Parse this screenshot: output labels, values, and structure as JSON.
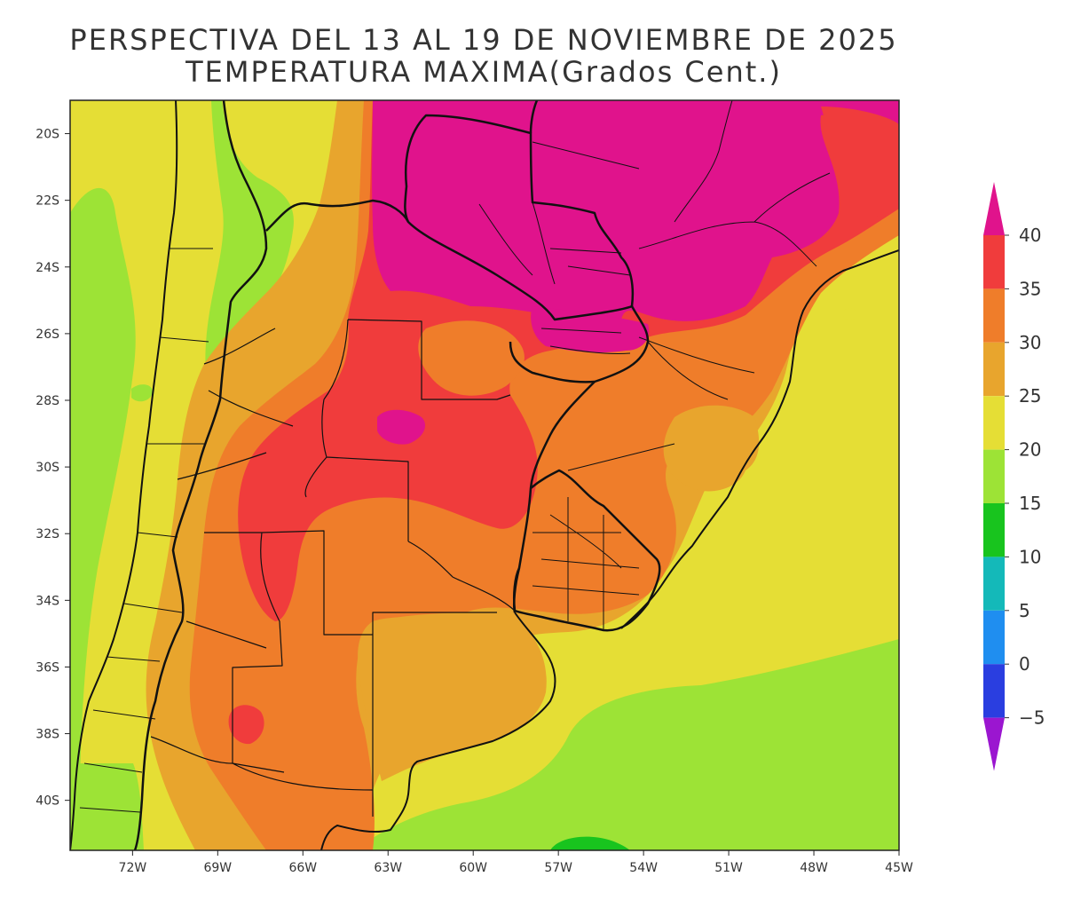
{
  "title": {
    "line1": "PERSPECTIVA DEL 13 AL 19 DE NOVIEMBRE DE 2025",
    "line2": "TEMPERATURA MAXIMA(Grados Cent.)"
  },
  "axes": {
    "x_ticks": [
      "72W",
      "69W",
      "66W",
      "63W",
      "60W",
      "57W",
      "54W",
      "51W",
      "48W",
      "45W"
    ],
    "x_values": [
      -72,
      -69,
      -66,
      -63,
      -60,
      -57,
      -54,
      -51,
      -48,
      -45
    ],
    "y_ticks": [
      "20S",
      "22S",
      "24S",
      "26S",
      "28S",
      "30S",
      "32S",
      "34S",
      "36S",
      "38S",
      "40S"
    ],
    "y_values": [
      -20,
      -22,
      -24,
      -26,
      -28,
      -30,
      -32,
      -34,
      -36,
      -38,
      -40
    ],
    "lon_range": [
      -74.2,
      -45
    ],
    "lat_range": [
      -41.5,
      -19
    ]
  },
  "legend": {
    "labels": [
      "40",
      "35",
      "30",
      "25",
      "20",
      "15",
      "10",
      "5",
      "0",
      "−5"
    ],
    "bins": [
      {
        "from": 40,
        "to": 45,
        "color": "#e0138c"
      },
      {
        "from": 35,
        "to": 40,
        "color": "#f03c3c"
      },
      {
        "from": 30,
        "to": 35,
        "color": "#ef7d2a"
      },
      {
        "from": 25,
        "to": 30,
        "color": "#e8a52d"
      },
      {
        "from": 20,
        "to": 25,
        "color": "#e5de35"
      },
      {
        "from": 15,
        "to": 20,
        "color": "#9de336"
      },
      {
        "from": 10,
        "to": 15,
        "color": "#18c41e"
      },
      {
        "from": 5,
        "to": 10,
        "color": "#14b9b9"
      },
      {
        "from": 0,
        "to": 5,
        "color": "#1f8ef0"
      },
      {
        "from": -5,
        "to": 0,
        "color": "#2a3ee0"
      },
      {
        "from": -10,
        "to": -5,
        "color": "#9b16d0"
      }
    ]
  },
  "colors": {
    "c40": "#e0138c",
    "c35": "#f03c3c",
    "c30": "#ef7d2a",
    "c25": "#e8a52d",
    "c20": "#e5de35",
    "c15": "#9de336",
    "c10": "#18c41e",
    "border": "#111111"
  }
}
